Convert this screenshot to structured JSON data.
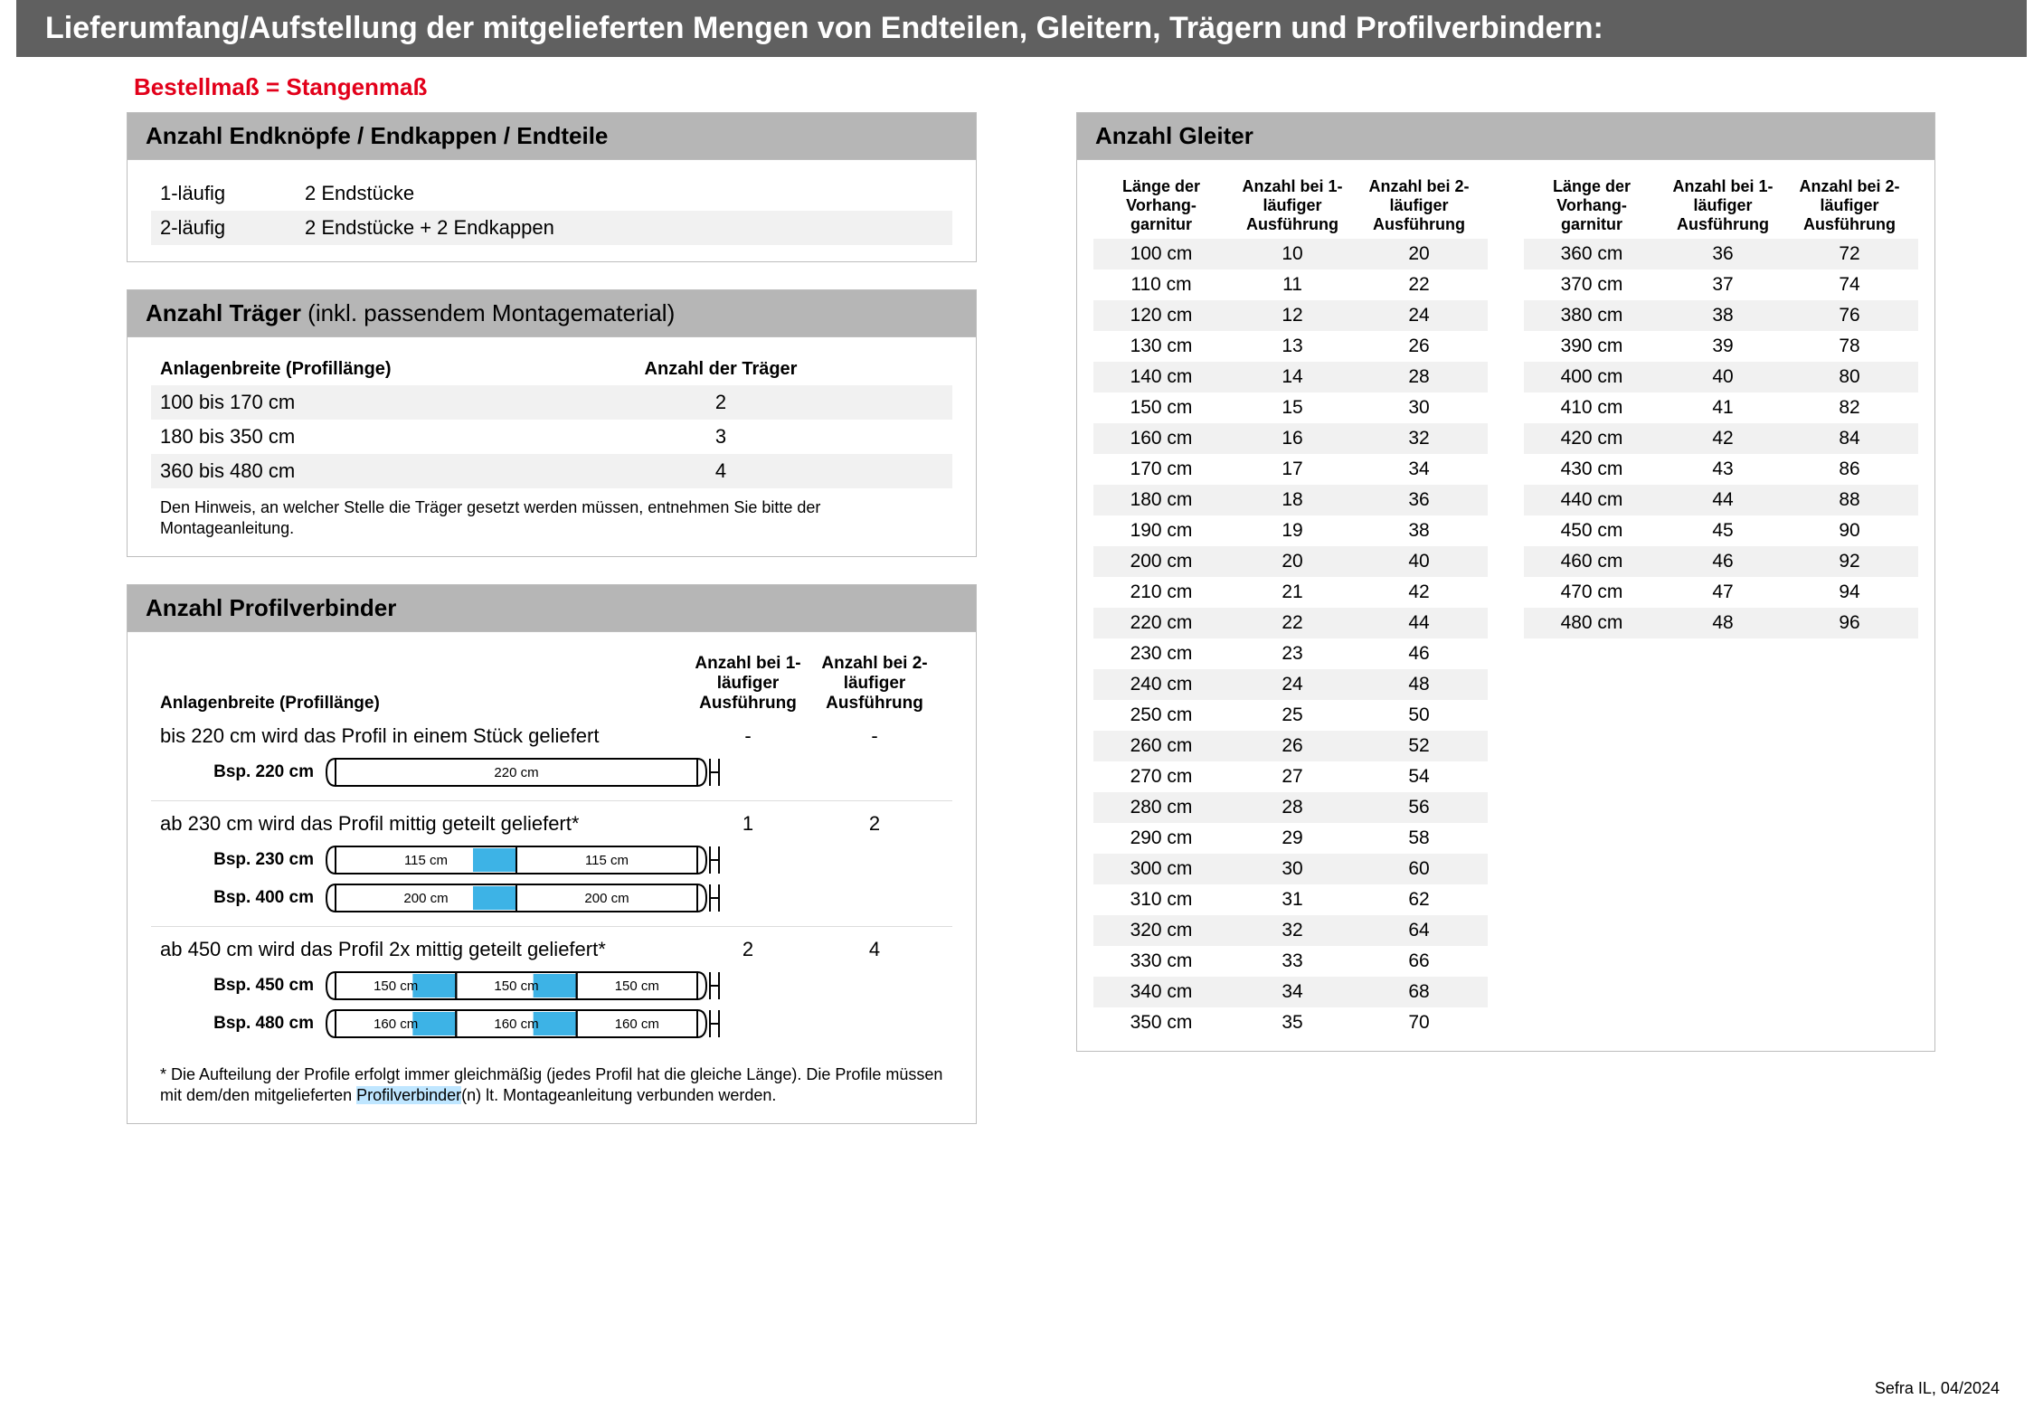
{
  "title": "Lieferumfang/Aufstellung der mitgelieferten Mengen von Endteilen, Gleitern, Trägern und Profilverbindern:",
  "subtitle": "Bestellmaß = Stangenmaß",
  "footer": "Sefra IL, 04/2024",
  "colors": {
    "title_bg": "#606060",
    "header_bg": "#b6b6b6",
    "stripe": "#f1f1f1",
    "accent_red": "#e2001a",
    "profile_blue": "#3db3e6",
    "highlight": "#bfe6ff",
    "border": "#bdbdbd"
  },
  "endteile": {
    "header": "Anzahl Endknöpfe / Endkappen / Endteile",
    "rows": [
      {
        "label": "1-läufig",
        "value": "2 Endstücke"
      },
      {
        "label": "2-läufig",
        "value": "2 Endstücke + 2 Endkappen"
      }
    ]
  },
  "traeger": {
    "header": "Anzahl Träger",
    "header_suffix": " (inkl. passendem Montagematerial)",
    "col1": "Anlagenbreite (Profillänge)",
    "col2": "Anzahl der Träger",
    "rows": [
      {
        "range": "100 bis 170 cm",
        "count": "2"
      },
      {
        "range": "180 bis 350 cm",
        "count": "3"
      },
      {
        "range": "360 bis 480 cm",
        "count": "4"
      }
    ],
    "note": "Den Hinweis, an welcher Stelle die Träger gesetzt werden müssen, entnehmen Sie bitte der Montageanleitung."
  },
  "profilverbinder": {
    "header": "Anzahl Profilverbinder",
    "col1": "Anlagenbreite (Profillänge)",
    "col2": "Anzahl bei 1-läufiger Ausführung",
    "col3": "Anzahl bei 2-läufiger Ausführung",
    "groups": [
      {
        "title": "bis 220 cm wird das Profil in einem Stück geliefert",
        "count1": "-",
        "count2": "-",
        "examples": [
          {
            "label": "Bsp. 220 cm",
            "segments": [
              "220 cm"
            ],
            "splits": 0
          }
        ]
      },
      {
        "title": "ab 230 cm wird das Profil mittig geteilt geliefert*",
        "count1": "1",
        "count2": "2",
        "examples": [
          {
            "label": "Bsp. 230 cm",
            "segments": [
              "115 cm",
              "115 cm"
            ],
            "splits": 1
          },
          {
            "label": "Bsp. 400 cm",
            "segments": [
              "200 cm",
              "200 cm"
            ],
            "splits": 1
          }
        ]
      },
      {
        "title": "ab 450 cm wird das Profil 2x mittig geteilt geliefert*",
        "count1": "2",
        "count2": "4",
        "examples": [
          {
            "label": "Bsp. 450 cm",
            "segments": [
              "150 cm",
              "150 cm",
              "150 cm"
            ],
            "splits": 2
          },
          {
            "label": "Bsp. 480 cm",
            "segments": [
              "160 cm",
              "160 cm",
              "160 cm"
            ],
            "splits": 2
          }
        ]
      }
    ],
    "note_pre": "* Die Aufteilung der Profile erfolgt immer gleichmäßig (jedes Profil hat die gleiche Länge). Die Profile müssen mit dem/den mitgelieferten ",
    "note_hl": "Profilverbinder",
    "note_post": "(n) lt. Montageanleitung verbunden werden."
  },
  "gleiter": {
    "header": "Anzahl Gleiter",
    "col1": "Länge der Vorhang-garnitur",
    "col2": "Anzahl bei 1-läufiger Ausführung",
    "col3": "Anzahl bei 2-läufiger Ausführung",
    "left": [
      {
        "len": "100 cm",
        "c1": "10",
        "c2": "20"
      },
      {
        "len": "110 cm",
        "c1": "11",
        "c2": "22"
      },
      {
        "len": "120 cm",
        "c1": "12",
        "c2": "24"
      },
      {
        "len": "130 cm",
        "c1": "13",
        "c2": "26"
      },
      {
        "len": "140 cm",
        "c1": "14",
        "c2": "28"
      },
      {
        "len": "150 cm",
        "c1": "15",
        "c2": "30"
      },
      {
        "len": "160 cm",
        "c1": "16",
        "c2": "32"
      },
      {
        "len": "170 cm",
        "c1": "17",
        "c2": "34"
      },
      {
        "len": "180 cm",
        "c1": "18",
        "c2": "36"
      },
      {
        "len": "190 cm",
        "c1": "19",
        "c2": "38"
      },
      {
        "len": "200 cm",
        "c1": "20",
        "c2": "40"
      },
      {
        "len": "210 cm",
        "c1": "21",
        "c2": "42"
      },
      {
        "len": "220 cm",
        "c1": "22",
        "c2": "44"
      },
      {
        "len": "230 cm",
        "c1": "23",
        "c2": "46"
      },
      {
        "len": "240 cm",
        "c1": "24",
        "c2": "48"
      },
      {
        "len": "250 cm",
        "c1": "25",
        "c2": "50"
      },
      {
        "len": "260 cm",
        "c1": "26",
        "c2": "52"
      },
      {
        "len": "270 cm",
        "c1": "27",
        "c2": "54"
      },
      {
        "len": "280 cm",
        "c1": "28",
        "c2": "56"
      },
      {
        "len": "290 cm",
        "c1": "29",
        "c2": "58"
      },
      {
        "len": "300 cm",
        "c1": "30",
        "c2": "60"
      },
      {
        "len": "310 cm",
        "c1": "31",
        "c2": "62"
      },
      {
        "len": "320 cm",
        "c1": "32",
        "c2": "64"
      },
      {
        "len": "330 cm",
        "c1": "33",
        "c2": "66"
      },
      {
        "len": "340 cm",
        "c1": "34",
        "c2": "68"
      },
      {
        "len": "350 cm",
        "c1": "35",
        "c2": "70"
      }
    ],
    "right": [
      {
        "len": "360 cm",
        "c1": "36",
        "c2": "72"
      },
      {
        "len": "370 cm",
        "c1": "37",
        "c2": "74"
      },
      {
        "len": "380 cm",
        "c1": "38",
        "c2": "76"
      },
      {
        "len": "390 cm",
        "c1": "39",
        "c2": "78"
      },
      {
        "len": "400 cm",
        "c1": "40",
        "c2": "80"
      },
      {
        "len": "410 cm",
        "c1": "41",
        "c2": "82"
      },
      {
        "len": "420 cm",
        "c1": "42",
        "c2": "84"
      },
      {
        "len": "430 cm",
        "c1": "43",
        "c2": "86"
      },
      {
        "len": "440 cm",
        "c1": "44",
        "c2": "88"
      },
      {
        "len": "450 cm",
        "c1": "45",
        "c2": "90"
      },
      {
        "len": "460 cm",
        "c1": "46",
        "c2": "92"
      },
      {
        "len": "470 cm",
        "c1": "47",
        "c2": "94"
      },
      {
        "len": "480 cm",
        "c1": "48",
        "c2": "96"
      }
    ]
  }
}
